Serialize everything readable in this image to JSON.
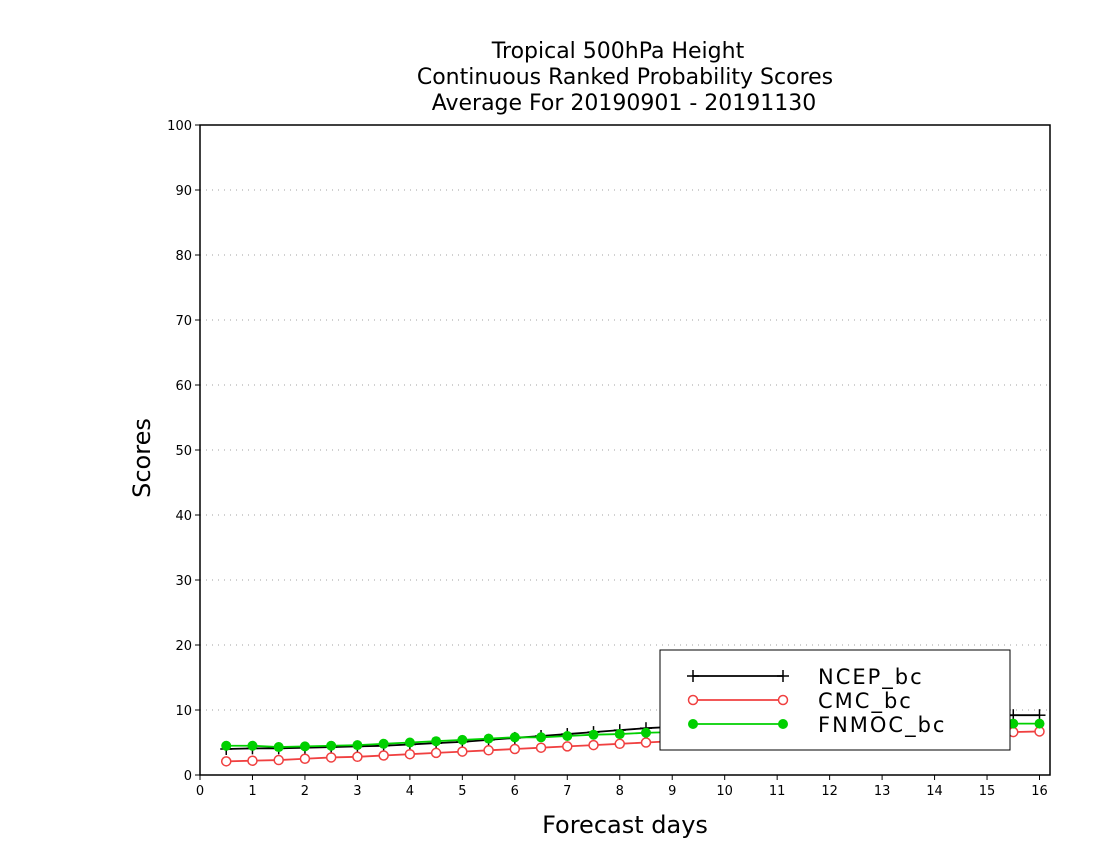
{
  "chart_data": {
    "type": "line",
    "title": [
      "Tropical 500hPa Height",
      "Continuous Ranked Probability Scores",
      "Average For 20190901 - 20191130"
    ],
    "xlabel": "Forecast days",
    "ylabel": "Scores",
    "xlim": [
      0,
      16.2
    ],
    "ylim": [
      0,
      100
    ],
    "xticks": [
      0,
      1,
      2,
      3,
      4,
      5,
      6,
      7,
      8,
      9,
      10,
      11,
      12,
      13,
      14,
      15,
      16
    ],
    "yticks": [
      0,
      10,
      20,
      30,
      40,
      50,
      60,
      70,
      80,
      90,
      100
    ],
    "grid": "horizontal dotted",
    "legend_position": "bottom-right",
    "x": [
      0.5,
      1,
      1.5,
      2,
      2.5,
      3,
      3.5,
      4,
      4.5,
      5,
      5.5,
      6,
      6.5,
      7,
      7.5,
      8,
      8.5,
      9,
      9.5,
      10,
      10.5,
      11,
      11.5,
      12,
      12.5,
      13,
      13.5,
      14,
      14.5,
      15,
      15.5,
      16
    ],
    "series": [
      {
        "name": "NCEP_bc",
        "color": "#000000",
        "marker": "plus",
        "values": [
          4.0,
          4.1,
          4.1,
          4.2,
          4.3,
          4.4,
          4.5,
          4.7,
          4.9,
          5.1,
          5.4,
          5.7,
          6.0,
          6.3,
          6.6,
          6.9,
          7.2,
          7.4,
          7.6,
          7.8,
          8.0,
          8.1,
          8.3,
          8.4,
          8.6,
          8.7,
          8.8,
          8.9,
          9.0,
          9.1,
          9.2,
          9.2
        ]
      },
      {
        "name": "CMC_bc",
        "color": "#f04040",
        "marker": "open-circle",
        "values": [
          2.1,
          2.2,
          2.3,
          2.5,
          2.7,
          2.8,
          3.0,
          3.2,
          3.4,
          3.6,
          3.8,
          4.0,
          4.2,
          4.4,
          4.6,
          4.8,
          5.0,
          5.2,
          5.3,
          5.5,
          5.6,
          5.7,
          5.8,
          5.9,
          6.0,
          6.1,
          6.2,
          6.3,
          6.4,
          6.5,
          6.6,
          6.7
        ]
      },
      {
        "name": "FNMOC_bc",
        "color": "#00d000",
        "marker": "filled-circle",
        "values": [
          4.5,
          4.5,
          4.3,
          4.4,
          4.5,
          4.6,
          4.8,
          5.0,
          5.2,
          5.4,
          5.6,
          5.8,
          5.8,
          6.0,
          6.2,
          6.3,
          6.5,
          6.6,
          6.7,
          6.8,
          6.9,
          7.0,
          7.1,
          7.2,
          7.3,
          7.4,
          7.5,
          7.6,
          7.7,
          7.8,
          7.9,
          7.9
        ]
      }
    ]
  }
}
